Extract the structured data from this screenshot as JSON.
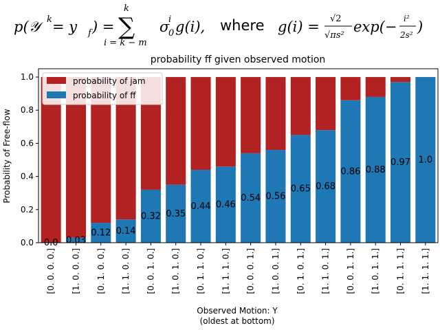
{
  "formula": {
    "left": "p(𝒴",
    "k_sup": "k",
    "eq_part": " = y",
    "f_sub": "f",
    "close_paren": ") =",
    "sum_top": "k",
    "sum_bottom": "i = k − m",
    "sigma": "σ",
    "sigma_sub": "0",
    "sigma_sup": "i",
    "g_part": "g(i),",
    "where": "where",
    "rhs_left": "g(i) =",
    "frac_num": "√2",
    "frac_den": "√πs²",
    "exp_part": "exp(−",
    "exp_num": "i²",
    "exp_den": "2s²",
    "exp_close": ")"
  },
  "chart_data": {
    "type": "bar",
    "stacked": true,
    "title": "probability ff given observed motion",
    "xlabel": "Observed Motion: Y",
    "xlabel2": "(oldest at bottom)",
    "ylabel": "Probability of Free-flow",
    "ylim": [
      0,
      1.05
    ],
    "yticks": [
      "0.0",
      "0.2",
      "0.4",
      "0.6",
      "0.8",
      "1.0"
    ],
    "categories": [
      "[0. 0. 0. 0.]",
      "[1. 0. 0. 0.]",
      "[0. 1. 0. 0.]",
      "[1. 1. 0. 0.]",
      "[0. 0. 1. 0.]",
      "[1. 0. 1. 0.]",
      "[0. 1. 1. 0.]",
      "[1. 1. 1. 0.]",
      "[0. 0. 0. 1.]",
      "[1. 0. 0. 1.]",
      "[0. 1. 0. 1.]",
      "[1. 1. 0. 1.]",
      "[0. 0. 1. 1.]",
      "[1. 0. 1. 1.]",
      "[0. 1. 1. 1.]",
      "[1. 1. 1. 1.]"
    ],
    "series": [
      {
        "name": "probability of ff",
        "color": "#1f77b4",
        "values": [
          0.0,
          0.03,
          0.12,
          0.14,
          0.32,
          0.35,
          0.44,
          0.46,
          0.54,
          0.56,
          0.65,
          0.68,
          0.86,
          0.88,
          0.97,
          1.0
        ]
      },
      {
        "name": "probability of jam",
        "color": "#b22222",
        "values": [
          1.0,
          0.97,
          0.88,
          0.86,
          0.68,
          0.65,
          0.56,
          0.54,
          0.46,
          0.44,
          0.35,
          0.32,
          0.14,
          0.12,
          0.03,
          0.0
        ]
      }
    ],
    "data_labels": [
      "0.0",
      "0.03",
      "0.12",
      "0.14",
      "0.32",
      "0.35",
      "0.44",
      "0.46",
      "0.54",
      "0.56",
      "0.65",
      "0.68",
      "0.86",
      "0.88",
      "0.97",
      "1.0"
    ],
    "legend": {
      "placement": "upper-left",
      "entries": [
        {
          "label": "probability of jam",
          "color": "#b22222"
        },
        {
          "label": "probability of ff",
          "color": "#1f77b4"
        }
      ]
    },
    "grid": false
  }
}
